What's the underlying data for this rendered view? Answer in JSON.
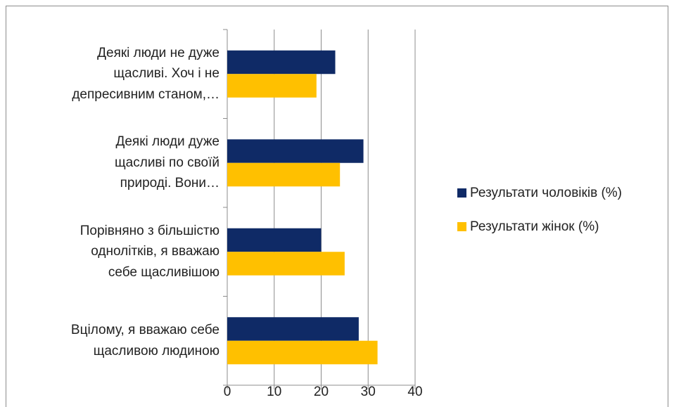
{
  "chart_data": {
    "type": "bar",
    "orientation": "horizontal",
    "categories": [
      "Деякі люди не дуже\nщасливі. Хоч і не\nдепресивним станом,…",
      "Деякі люди дуже\nщасливі по своїй\nприроді. Вони…",
      "Порівняно з більшістю\nоднолітків, я вважаю\nсебе щасливішою",
      "Вцілому, я вважаю себе\nщасливою людиною"
    ],
    "series": [
      {
        "name": "Результати чоловіків (%)",
        "color": "#0f2a66",
        "values": [
          23,
          29,
          20,
          28
        ]
      },
      {
        "name": "Результати жінок (%)",
        "color": "#ffc000",
        "values": [
          19,
          24,
          25,
          32
        ]
      }
    ],
    "xlim": [
      0,
      40
    ],
    "xticks": [
      0,
      10,
      20,
      30,
      40
    ],
    "grid": true,
    "legend": "right"
  }
}
